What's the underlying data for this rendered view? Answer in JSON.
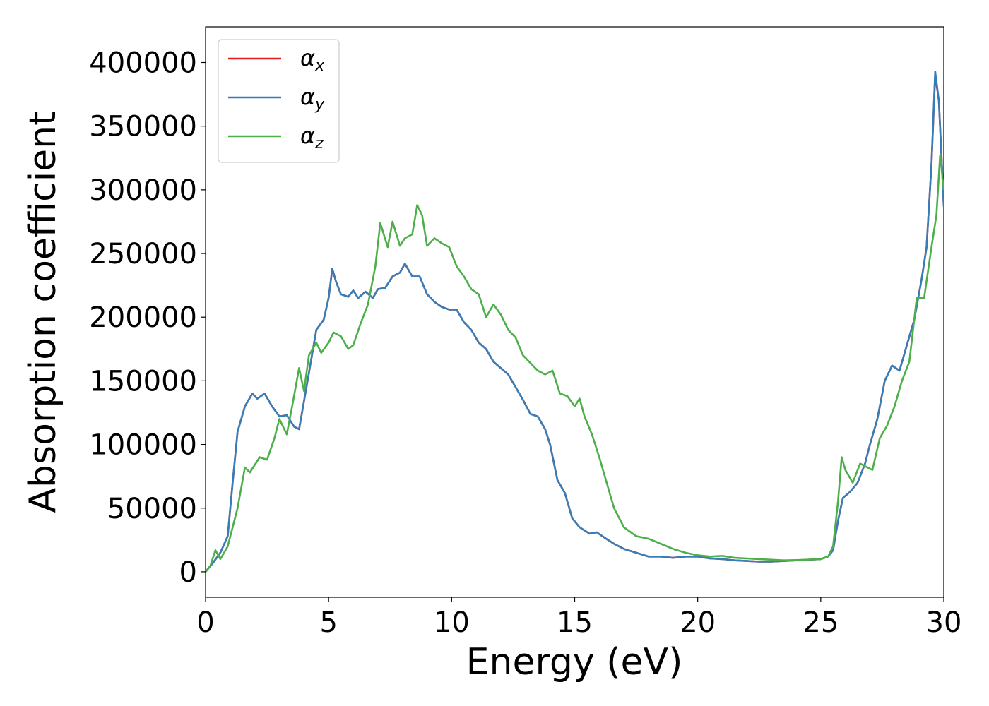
{
  "chart_data": {
    "type": "line",
    "title": "",
    "xlabel": "Energy (eV)",
    "ylabel": "Absorption coefficient",
    "xlim": [
      0,
      30
    ],
    "ylim": [
      -20000,
      428000
    ],
    "xticks": [
      0,
      5,
      10,
      15,
      20,
      25,
      30
    ],
    "yticks": [
      0,
      50000,
      100000,
      150000,
      200000,
      250000,
      300000,
      350000,
      400000
    ],
    "grid": false,
    "legend_position": "top-left",
    "series": [
      {
        "name": "αx",
        "legend_symbol": "α",
        "legend_subscript": "x",
        "color": "#e41a1c",
        "x": [
          0,
          0.3,
          0.6,
          0.9,
          1.1,
          1.3,
          1.6,
          1.9,
          2.1,
          2.4,
          2.7,
          3.0,
          3.3,
          3.6,
          3.8,
          4.1,
          4.5,
          4.8,
          5.0,
          5.15,
          5.3,
          5.5,
          5.8,
          6.0,
          6.2,
          6.5,
          6.8,
          7.0,
          7.3,
          7.6,
          7.9,
          8.1,
          8.4,
          8.7,
          9.0,
          9.3,
          9.6,
          9.9,
          10.2,
          10.5,
          10.8,
          11.1,
          11.4,
          11.7,
          12.0,
          12.3,
          12.6,
          12.9,
          13.2,
          13.5,
          13.8,
          14.0,
          14.3,
          14.6,
          14.9,
          15.2,
          15.6,
          15.9,
          16.2,
          16.6,
          17.0,
          17.5,
          18.0,
          18.5,
          19.0,
          19.5,
          20.0,
          20.5,
          21.0,
          21.5,
          22.0,
          22.5,
          23.0,
          23.5,
          24.0,
          24.5,
          25.0,
          25.3,
          25.5,
          25.7,
          25.9,
          26.2,
          26.5,
          26.8,
          27.0,
          27.3,
          27.6,
          27.9,
          28.2,
          28.5,
          28.8,
          29.1,
          29.3,
          29.5,
          29.65,
          29.8,
          30.0
        ],
        "values": [
          0,
          7000,
          15000,
          28000,
          70000,
          110000,
          130000,
          140000,
          136000,
          140000,
          130000,
          122000,
          123000,
          114000,
          112000,
          145000,
          190000,
          198000,
          215000,
          238000,
          228000,
          218000,
          216000,
          221000,
          215000,
          220000,
          215000,
          222000,
          223000,
          232000,
          235000,
          242000,
          232000,
          232000,
          218000,
          212000,
          208000,
          206000,
          206000,
          196000,
          190000,
          180000,
          175000,
          165000,
          160000,
          155000,
          145000,
          135000,
          124000,
          122000,
          112000,
          100000,
          72000,
          62000,
          42000,
          35000,
          30000,
          31000,
          27000,
          22000,
          18000,
          15000,
          12000,
          12000,
          11000,
          12000,
          12000,
          10500,
          10000,
          9000,
          8500,
          8000,
          8000,
          8500,
          9000,
          9500,
          10000,
          12000,
          17000,
          40000,
          58000,
          63000,
          70000,
          85000,
          100000,
          120000,
          150000,
          162000,
          158000,
          178000,
          198000,
          230000,
          255000,
          320000,
          390000,
          370000,
          287000
        ]
      },
      {
        "name": "αy",
        "legend_symbol": "α",
        "legend_subscript": "y",
        "color": "#377eb8",
        "x": [
          0,
          0.3,
          0.6,
          0.9,
          1.1,
          1.3,
          1.6,
          1.9,
          2.1,
          2.4,
          2.7,
          3.0,
          3.3,
          3.6,
          3.8,
          4.1,
          4.5,
          4.8,
          5.0,
          5.15,
          5.3,
          5.5,
          5.8,
          6.0,
          6.2,
          6.5,
          6.8,
          7.0,
          7.3,
          7.6,
          7.9,
          8.1,
          8.4,
          8.7,
          9.0,
          9.3,
          9.6,
          9.9,
          10.2,
          10.5,
          10.8,
          11.1,
          11.4,
          11.7,
          12.0,
          12.3,
          12.6,
          12.9,
          13.2,
          13.5,
          13.8,
          14.0,
          14.3,
          14.6,
          14.9,
          15.2,
          15.6,
          15.9,
          16.2,
          16.6,
          17.0,
          17.5,
          18.0,
          18.5,
          19.0,
          19.5,
          20.0,
          20.5,
          21.0,
          21.5,
          22.0,
          22.5,
          23.0,
          23.5,
          24.0,
          24.5,
          25.0,
          25.3,
          25.5,
          25.7,
          25.9,
          26.2,
          26.5,
          26.8,
          27.0,
          27.3,
          27.6,
          27.9,
          28.2,
          28.5,
          28.8,
          29.1,
          29.3,
          29.5,
          29.65,
          29.8,
          30.0
        ],
        "values": [
          0,
          7000,
          15000,
          28000,
          70000,
          110000,
          130000,
          140000,
          136000,
          140000,
          130000,
          122000,
          123000,
          114000,
          112000,
          145000,
          190000,
          198000,
          215000,
          238000,
          228000,
          218000,
          216000,
          221000,
          215000,
          220000,
          215000,
          222000,
          223000,
          232000,
          235000,
          242000,
          232000,
          232000,
          218000,
          212000,
          208000,
          206000,
          206000,
          196000,
          190000,
          180000,
          175000,
          165000,
          160000,
          155000,
          145000,
          135000,
          124000,
          122000,
          112000,
          100000,
          72000,
          62000,
          42000,
          35000,
          30000,
          31000,
          27000,
          22000,
          18000,
          15000,
          12000,
          12000,
          11000,
          12000,
          12000,
          10500,
          10000,
          9000,
          8500,
          8000,
          8000,
          8500,
          9000,
          9500,
          10000,
          12000,
          17000,
          40000,
          58000,
          63000,
          70000,
          85000,
          100000,
          120000,
          150000,
          162000,
          158000,
          178000,
          198000,
          230000,
          255000,
          320000,
          393000,
          370000,
          287000
        ]
      },
      {
        "name": "αz",
        "legend_symbol": "α",
        "legend_subscript": "z",
        "color": "#4daf4a",
        "x": [
          0,
          0.2,
          0.4,
          0.6,
          0.9,
          1.1,
          1.3,
          1.6,
          1.8,
          2.0,
          2.2,
          2.5,
          2.8,
          3.0,
          3.3,
          3.5,
          3.8,
          4.0,
          4.2,
          4.5,
          4.7,
          5.0,
          5.2,
          5.5,
          5.8,
          6.0,
          6.3,
          6.6,
          6.9,
          7.1,
          7.4,
          7.6,
          7.9,
          8.1,
          8.4,
          8.6,
          8.8,
          9.0,
          9.3,
          9.6,
          9.9,
          10.2,
          10.5,
          10.8,
          11.1,
          11.4,
          11.7,
          12.0,
          12.3,
          12.6,
          12.9,
          13.2,
          13.5,
          13.8,
          14.1,
          14.4,
          14.7,
          15.0,
          15.2,
          15.4,
          15.7,
          16.0,
          16.3,
          16.6,
          17.0,
          17.5,
          18.0,
          18.5,
          19.0,
          19.5,
          20.0,
          20.5,
          21.0,
          21.5,
          22.0,
          22.5,
          23.0,
          23.5,
          24.0,
          24.5,
          25.0,
          25.3,
          25.5,
          25.7,
          25.85,
          26.0,
          26.3,
          26.6,
          26.9,
          27.1,
          27.4,
          27.7,
          28.0,
          28.3,
          28.6,
          28.9,
          29.2,
          29.5,
          29.7,
          29.85,
          30.0
        ],
        "values": [
          0,
          5000,
          17000,
          10000,
          20000,
          35000,
          50000,
          82000,
          78000,
          84000,
          90000,
          88000,
          105000,
          120000,
          108000,
          128000,
          160000,
          142000,
          170000,
          180000,
          172000,
          180000,
          188000,
          185000,
          175000,
          178000,
          195000,
          210000,
          240000,
          274000,
          255000,
          275000,
          256000,
          262000,
          265000,
          288000,
          280000,
          256000,
          262000,
          258000,
          255000,
          240000,
          232000,
          222000,
          218000,
          200000,
          210000,
          202000,
          190000,
          184000,
          170000,
          164000,
          158000,
          155000,
          158000,
          140000,
          138000,
          130000,
          136000,
          122000,
          108000,
          90000,
          70000,
          50000,
          35000,
          28000,
          26000,
          22000,
          18000,
          15000,
          13000,
          12000,
          12500,
          11000,
          10500,
          10000,
          9500,
          9000,
          9200,
          9600,
          10000,
          12000,
          20000,
          55000,
          90000,
          80000,
          70000,
          85000,
          82000,
          80000,
          105000,
          115000,
          130000,
          150000,
          165000,
          215000,
          215000,
          255000,
          280000,
          327000,
          300000
        ]
      }
    ]
  }
}
